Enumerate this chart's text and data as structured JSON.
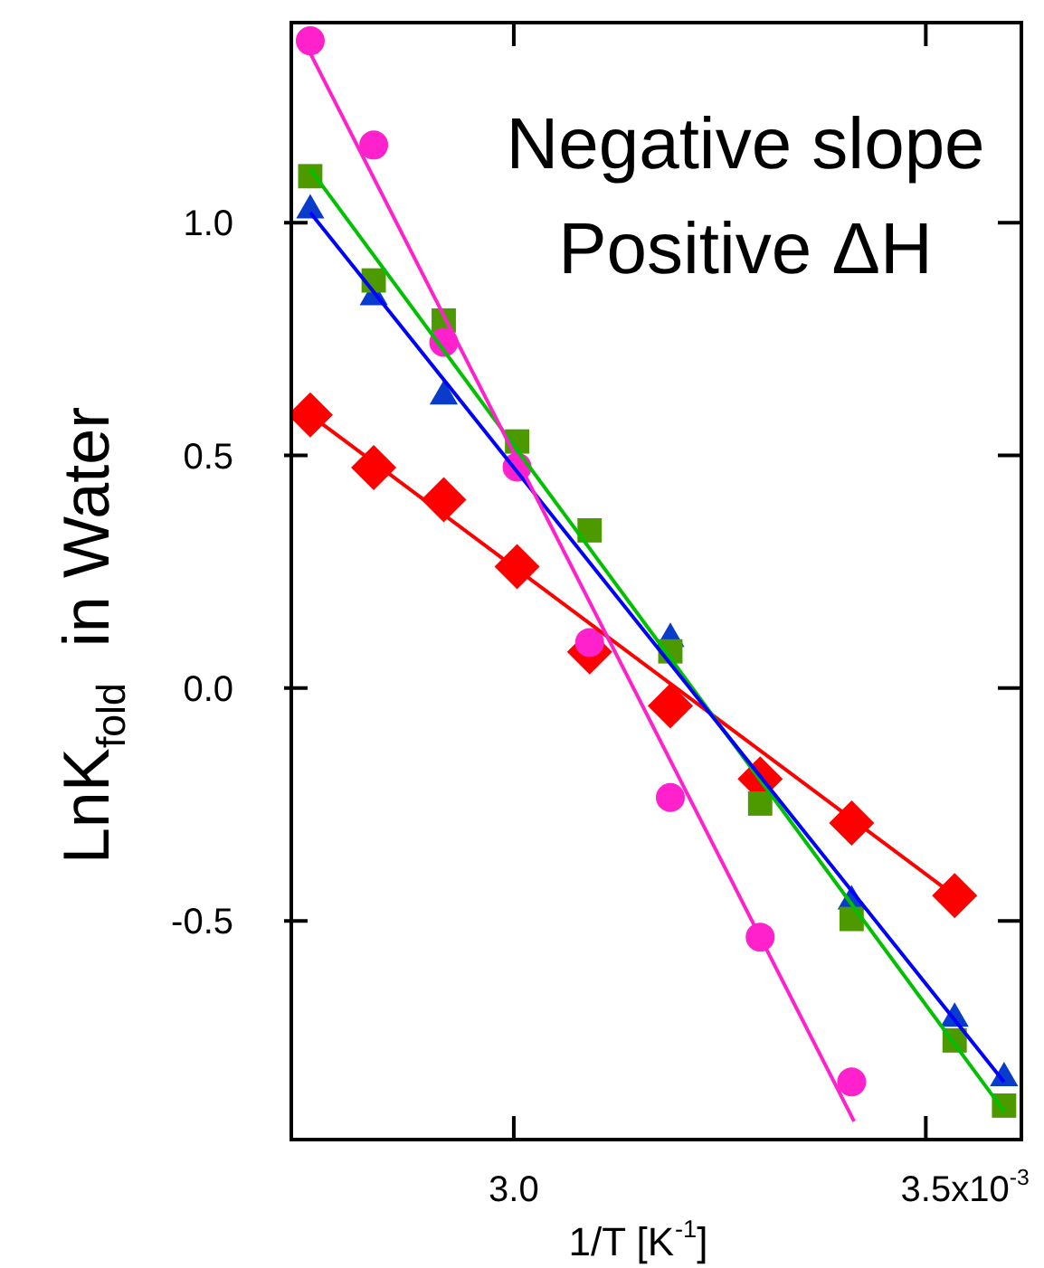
{
  "chart_data": {
    "type": "scatter",
    "xlabel": "1/T [K$^{-1}$]",
    "ylabel": "LnK$_{fold}$  in Water",
    "annotations": [
      "Negative slope",
      "Positive ΔH",
      "x10$^{-3}$"
    ],
    "x": [
      2.753,
      2.83,
      2.915,
      3.004,
      3.092,
      3.19,
      3.299,
      3.41,
      3.535,
      3.595
    ],
    "series": [
      {
        "type": "scatter",
        "marker": "circle",
        "color": "#ff22cc",
        "values": [
          1.391,
          1.167,
          0.743,
          0.475,
          0.098,
          -0.235,
          -0.535,
          -0.846,
          null,
          null
        ]
      },
      {
        "type": "scatter",
        "marker": "triangle",
        "color": "#0a3ccc",
        "values": [
          1.027,
          0.84,
          0.627,
          null,
          null,
          0.106,
          null,
          -0.458,
          -0.71,
          -0.838
        ]
      },
      {
        "type": "scatter",
        "marker": "square",
        "color": "#4c9900",
        "values": [
          1.1,
          0.876,
          0.79,
          0.53,
          0.339,
          0.079,
          -0.248,
          -0.496,
          -0.757,
          -0.897
        ]
      },
      {
        "type": "scatter",
        "marker": "diamond",
        "color": "#ff0000",
        "values": [
          0.587,
          0.474,
          0.405,
          0.261,
          0.078,
          -0.038,
          -0.195,
          -0.29,
          -0.446,
          null
        ]
      },
      {
        "type": "line",
        "color": "#ff22cc",
        "x": [
          2.753,
          3.413
        ],
        "values": [
          1.364,
          -0.931
        ]
      },
      {
        "type": "line",
        "color": "#0000ff",
        "x": [
          2.753,
          3.595
        ],
        "values": [
          1.022,
          -0.846
        ]
      },
      {
        "type": "line",
        "color": "#00c000",
        "x": [
          2.753,
          3.595
        ],
        "values": [
          1.115,
          -0.909
        ]
      },
      {
        "type": "line",
        "color": "#ff0000",
        "x": [
          2.753,
          3.535
        ],
        "values": [
          0.587,
          -0.446
        ]
      }
    ],
    "xlim": [
      2.73,
      3.616
    ],
    "ylim": [
      -0.97,
      1.43
    ],
    "xticks": [
      {
        "value": 3.0,
        "label": "3.0"
      },
      {
        "value": 3.5,
        "label": "3.5"
      }
    ],
    "yticks": [
      {
        "value": -0.5,
        "label": "-0.5"
      },
      {
        "value": 0,
        "label": "0.0"
      },
      {
        "value": 0.5,
        "label": "0.5"
      },
      {
        "value": 1,
        "label": "1.0"
      }
    ]
  }
}
